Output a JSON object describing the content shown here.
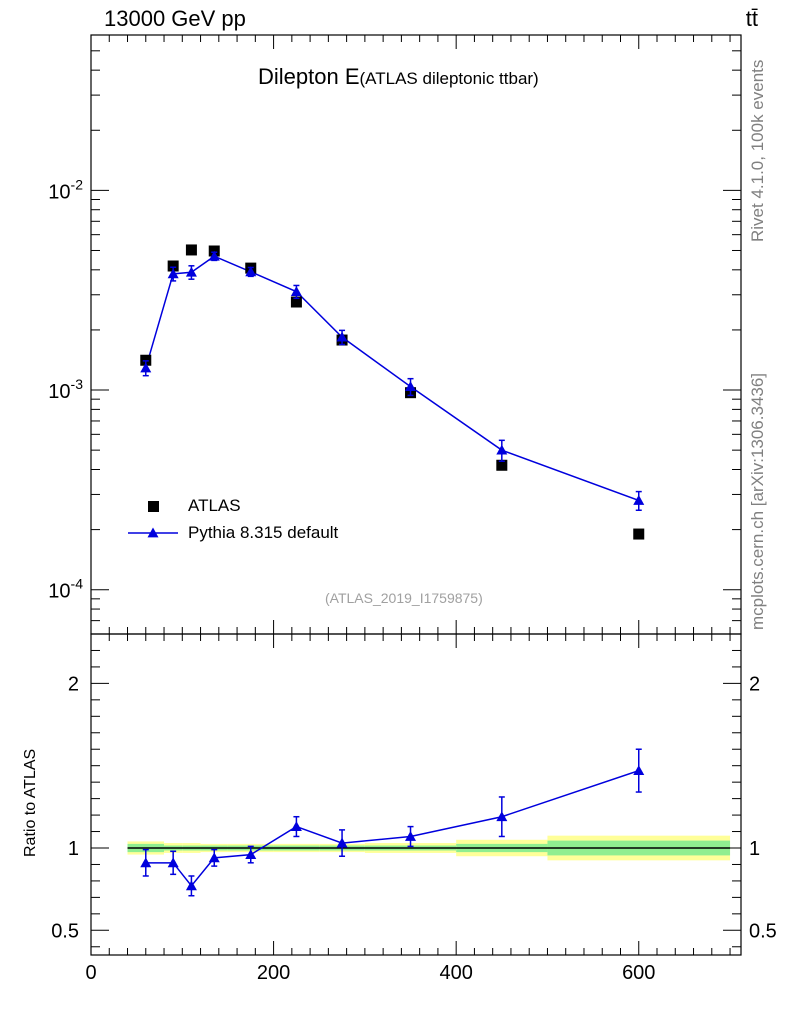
{
  "header": {
    "energy_label": "13000 GeV pp",
    "process_label": "tt̄"
  },
  "title": {
    "main": "Dilepton E",
    "sub": "(ATLAS dileptonic ttbar)"
  },
  "side_labels": {
    "rivet": "Rivet 4.1.0,  100k events",
    "source": "mcplots.cern.ch [arXiv:1306.3436]"
  },
  "analysis_id": "(ATLAS_2019_I1759875)",
  "legend": {
    "data_label": "ATLAS",
    "mc_label": "Pythia 8.315 default"
  },
  "ratio_ylabel": "Ratio to ATLAS",
  "colors": {
    "mc": "#0000dd",
    "data": "#000000",
    "band_inner": "#90ee90",
    "band_outer": "#ffff99"
  },
  "chart_data": {
    "type": "scatter",
    "main": {
      "yscale": "log",
      "ylim": [
        6e-05,
        0.06
      ],
      "y_tick_labels": [
        "10^-2",
        "10^-3",
        "10^-4"
      ],
      "data_series": {
        "name": "ATLAS",
        "x": [
          60,
          90,
          110,
          135,
          175,
          225,
          275,
          350,
          450,
          600
        ],
        "y": [
          0.00141,
          0.00418,
          0.00503,
          0.00497,
          0.00408,
          0.00276,
          0.00178,
          0.00097,
          0.00042,
          0.00019
        ]
      },
      "mc_series": {
        "name": "Pythia 8.315 default",
        "x": [
          60,
          90,
          110,
          135,
          175,
          225,
          275,
          350,
          450,
          600
        ],
        "y": [
          0.00129,
          0.00382,
          0.00389,
          0.00468,
          0.00391,
          0.00311,
          0.00184,
          0.00104,
          0.0005,
          0.00028
        ],
        "err_low": [
          0.00011,
          0.0003,
          0.0003,
          0.00022,
          0.0002,
          0.00023,
          0.00015,
          0.0001,
          6e-05,
          3e-05
        ],
        "err_high": [
          0.00011,
          0.0003,
          0.0003,
          0.00022,
          0.0002,
          0.00023,
          0.00015,
          0.0001,
          6e-05,
          3e-05
        ]
      }
    },
    "ratio": {
      "ylim": [
        0.35,
        2.3
      ],
      "y_tick_labels": [
        "0.5",
        "1",
        "2"
      ],
      "y_ticks": [
        0.5,
        1,
        2
      ],
      "mc_values": [
        0.91,
        0.91,
        0.77,
        0.94,
        0.96,
        1.13,
        1.03,
        1.07,
        1.19,
        1.47
      ],
      "mc_err": [
        0.08,
        0.07,
        0.06,
        0.05,
        0.05,
        0.06,
        0.08,
        0.06,
        0.12,
        0.13
      ],
      "band_bins": [
        {
          "x": [
            40,
            80
          ],
          "inner": 0.025,
          "outer": 0.04
        },
        {
          "x": [
            80,
            100
          ],
          "inner": 0.015,
          "outer": 0.03
        },
        {
          "x": [
            100,
            120
          ],
          "inner": 0.015,
          "outer": 0.03
        },
        {
          "x": [
            120,
            150
          ],
          "inner": 0.015,
          "outer": 0.025
        },
        {
          "x": [
            150,
            200
          ],
          "inner": 0.015,
          "outer": 0.025
        },
        {
          "x": [
            200,
            250
          ],
          "inner": 0.015,
          "outer": 0.025
        },
        {
          "x": [
            250,
            300
          ],
          "inner": 0.015,
          "outer": 0.025
        },
        {
          "x": [
            300,
            400
          ],
          "inner": 0.015,
          "outer": 0.03
        },
        {
          "x": [
            400,
            500
          ],
          "inner": 0.025,
          "outer": 0.05
        },
        {
          "x": [
            500,
            700
          ],
          "inner": 0.045,
          "outer": 0.075
        }
      ]
    },
    "x_axis": {
      "xlim": [
        0,
        712
      ],
      "tick_labels": [
        "0",
        "200",
        "400",
        "600"
      ],
      "ticks": [
        0,
        200,
        400,
        600
      ]
    }
  }
}
